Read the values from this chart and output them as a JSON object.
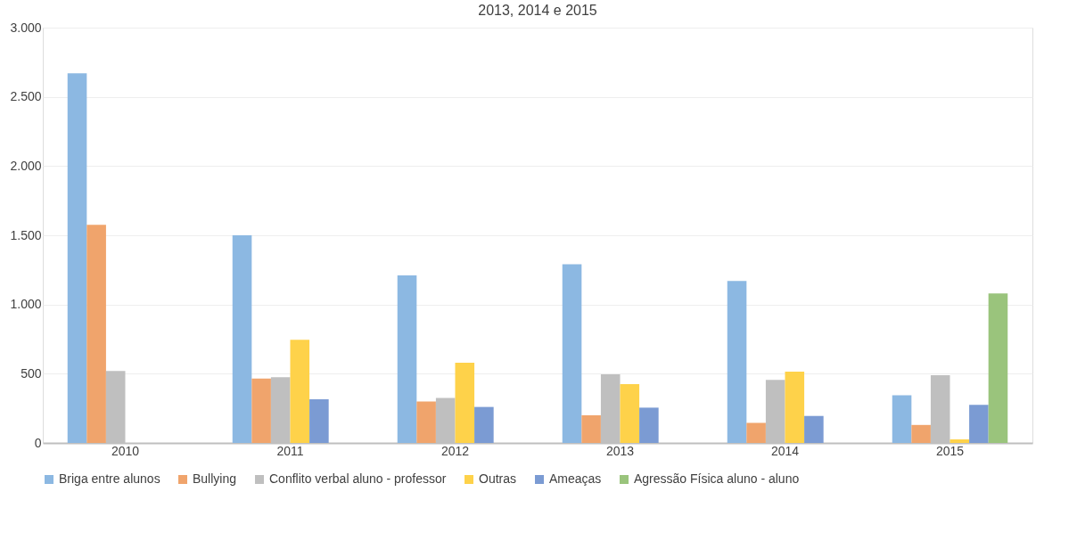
{
  "chart_data": {
    "type": "bar",
    "title": "2013, 2014 e 2015",
    "categories": [
      "2010",
      "2011",
      "2012",
      "2013",
      "2014",
      "2015"
    ],
    "series": [
      {
        "name": "Briga entre alunos",
        "color": "#8cb8e2",
        "values": [
          2670,
          1500,
          1210,
          1290,
          1170,
          345
        ]
      },
      {
        "name": "Bullying",
        "color": "#f0a46c",
        "values": [
          1575,
          465,
          300,
          200,
          145,
          130
        ]
      },
      {
        "name": "Conflito verbal aluno - professor",
        "color": "#bfbfbf",
        "values": [
          520,
          475,
          325,
          495,
          455,
          490
        ]
      },
      {
        "name": "Outras",
        "color": "#fed24a",
        "values": [
          null,
          745,
          580,
          425,
          515,
          25
        ]
      },
      {
        "name": "Ameaças",
        "color": "#7b9bd3",
        "values": [
          null,
          315,
          260,
          255,
          195,
          275
        ]
      },
      {
        "name": "Agressão Física aluno - aluno",
        "color": "#9ac47c",
        "values": [
          null,
          null,
          null,
          null,
          null,
          1080
        ]
      }
    ],
    "ylim": [
      0,
      3000
    ],
    "yticks": [
      0,
      500,
      {
        "value": 1000,
        "label": "1.000"
      },
      {
        "value": 1500,
        "label": "1.500"
      },
      {
        "value": 2000,
        "label": "2.000"
      },
      {
        "value": 2500,
        "label": "2.500"
      },
      {
        "value": 3000,
        "label": "3.000"
      }
    ],
    "grid": "y",
    "legend": "bottom"
  }
}
